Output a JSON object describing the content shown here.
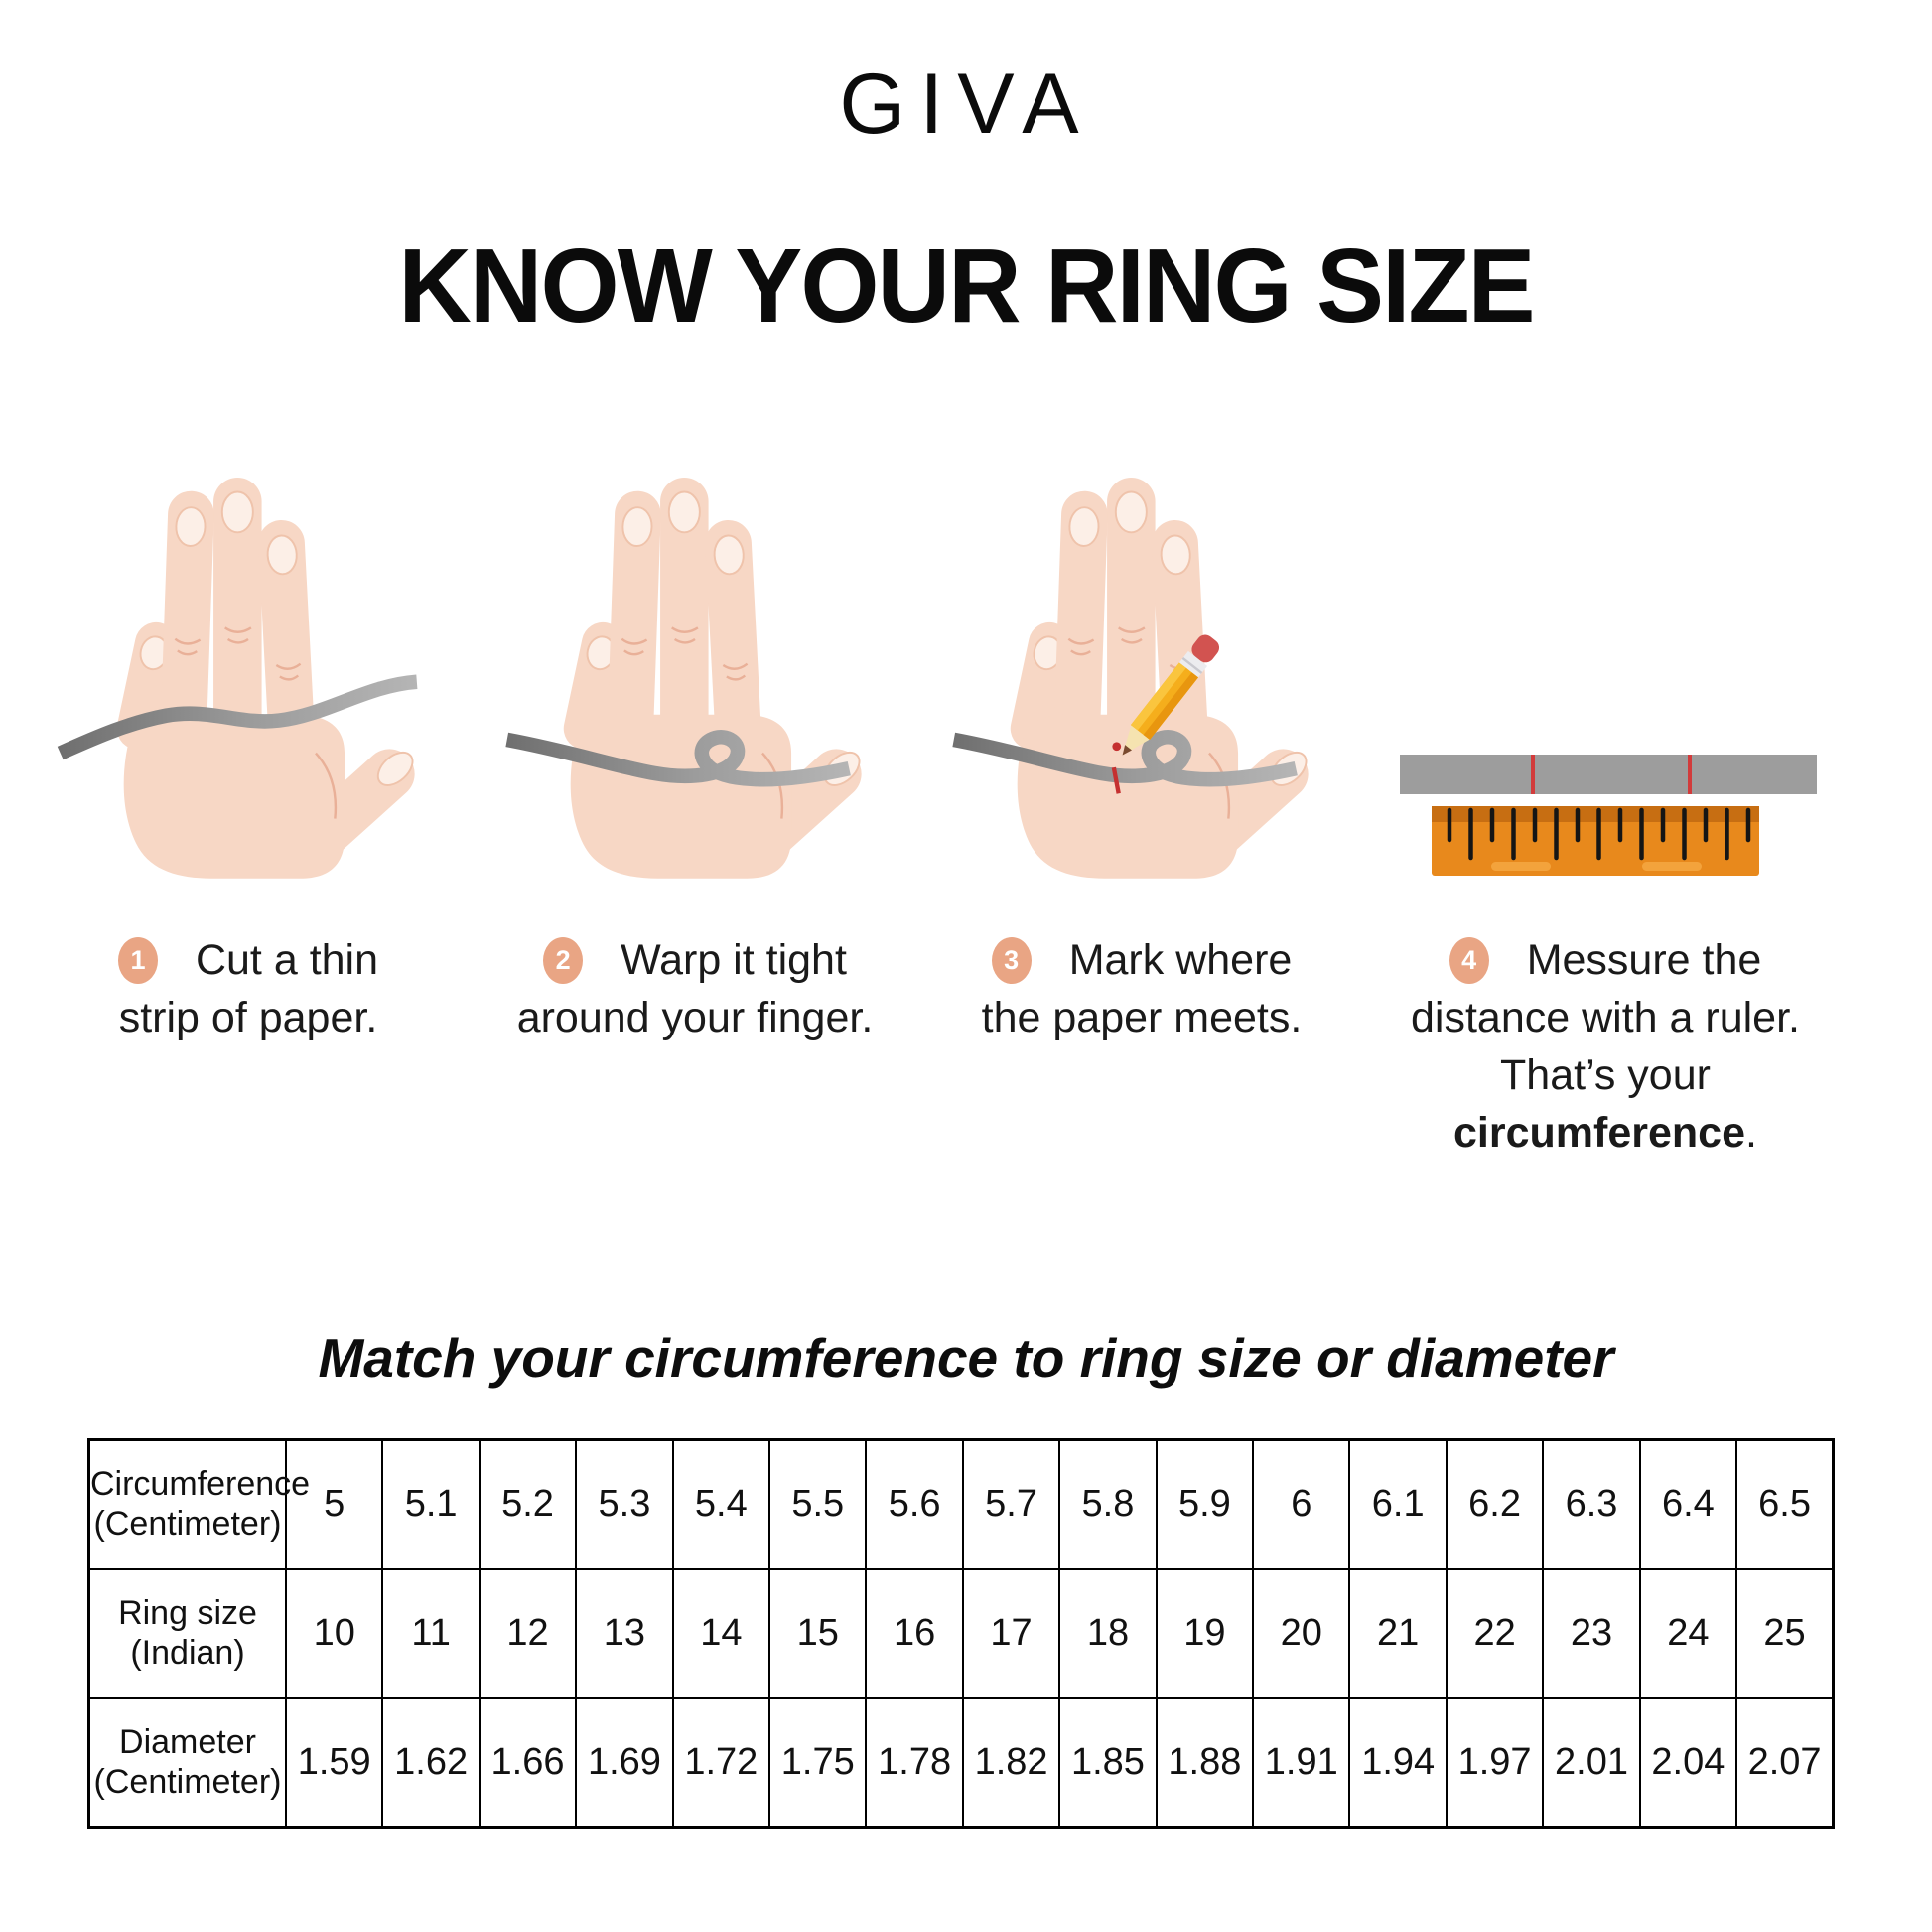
{
  "brand": {
    "logo_text": "GIVA"
  },
  "title": "KNOW YOUR RING SIZE",
  "steps": [
    {
      "badge": "1",
      "lines": [
        "Cut a thin",
        "strip of paper."
      ]
    },
    {
      "badge": "2",
      "lines": [
        "Warp it tight",
        "around your finger."
      ]
    },
    {
      "badge": "3",
      "lines": [
        "Mark where",
        "the paper meets."
      ]
    },
    {
      "badge": "4",
      "lines": [
        "Messure the",
        "distance with a ruler."
      ],
      "tail_prefix": "That’s your ",
      "tail_bold": "circumference",
      "tail_suffix": "."
    }
  ],
  "match_heading": "Match your circumference to ring size or diameter",
  "size_table": {
    "rows": [
      {
        "label_line1": "Circumference",
        "label_line2": "(Centimeter)",
        "values": [
          "5",
          "5.1",
          "5.2",
          "5.3",
          "5.4",
          "5.5",
          "5.6",
          "5.7",
          "5.8",
          "5.9",
          "6",
          "6.1",
          "6.2",
          "6.3",
          "6.4",
          "6.5"
        ]
      },
      {
        "label_line1": "Ring size",
        "label_line2": "(Indian)",
        "values": [
          "10",
          "11",
          "12",
          "13",
          "14",
          "15",
          "16",
          "17",
          "18",
          "19",
          "20",
          "21",
          "22",
          "23",
          "24",
          "25"
        ]
      },
      {
        "label_line1": "Diameter",
        "label_line2": "(Centimeter)",
        "values": [
          "1.59",
          "1.62",
          "1.66",
          "1.69",
          "1.72",
          "1.75",
          "1.78",
          "1.82",
          "1.85",
          "1.88",
          "1.91",
          "1.94",
          "1.97",
          "2.01",
          "2.04",
          "2.07"
        ]
      }
    ]
  },
  "colors": {
    "badge": "#E9A584",
    "skin": "#F7D7C5",
    "nail": "#FCEFE7",
    "strip_dark": "#6F6F6F",
    "strip_light": "#B5B5B5",
    "ruler_body": "#E8891C",
    "ruler_band": "#C76E12",
    "mark_red": "#C53030"
  }
}
